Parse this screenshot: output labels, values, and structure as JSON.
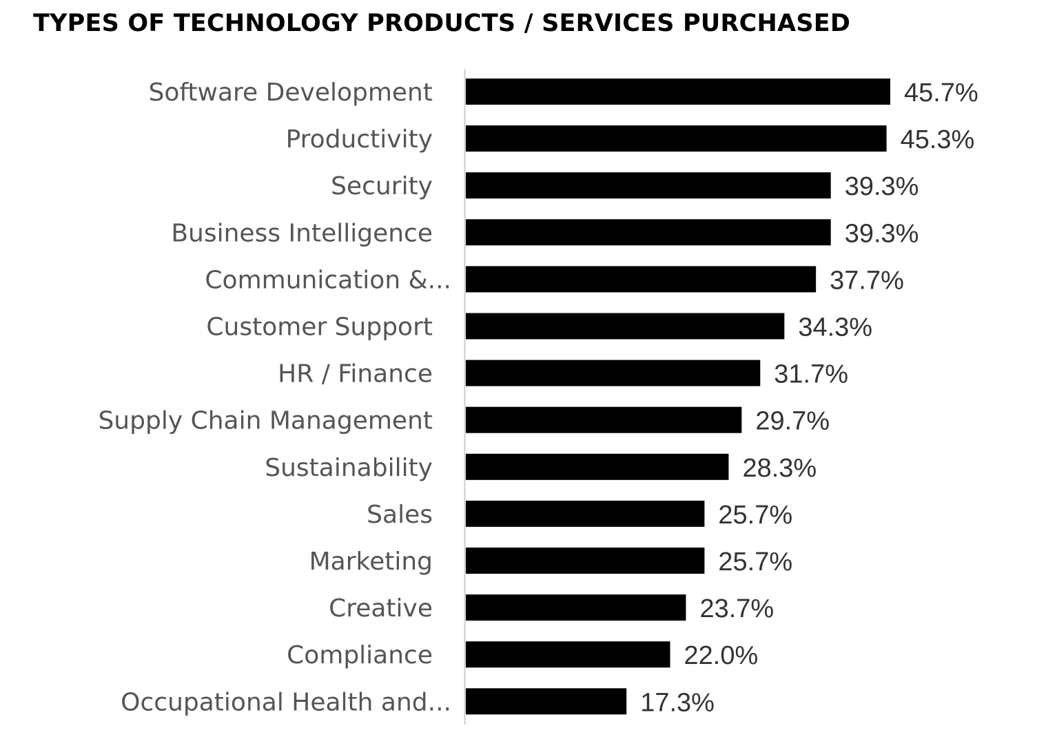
{
  "chart_data": {
    "type": "bar",
    "orientation": "horizontal",
    "title": "TYPES OF TECHNOLOGY PRODUCTS / SERVICES PURCHASED",
    "categories": [
      "Software Development",
      "Productivity",
      "Security",
      "Business Intelligence",
      "Communication &...",
      "Customer Support",
      "HR / Finance",
      "Supply Chain Management",
      "Sustainability",
      "Sales",
      "Marketing",
      "Creative",
      "Compliance",
      "Occupational Health and..."
    ],
    "values": [
      45.7,
      45.3,
      39.3,
      39.3,
      37.7,
      34.3,
      31.7,
      29.7,
      28.3,
      25.7,
      25.7,
      23.7,
      22.0,
      17.3
    ],
    "data_labels": [
      "45.7%",
      "45.3%",
      "39.3%",
      "39.3%",
      "37.7%",
      "34.3%",
      "31.7%",
      "29.7%",
      "28.3%",
      "25.7%",
      "25.7%",
      "23.7%",
      "22.0%",
      "17.3%"
    ],
    "unit": "%",
    "xlabel": "",
    "ylabel": "",
    "grid": false,
    "legend": "none",
    "bar_color": "#000000"
  }
}
